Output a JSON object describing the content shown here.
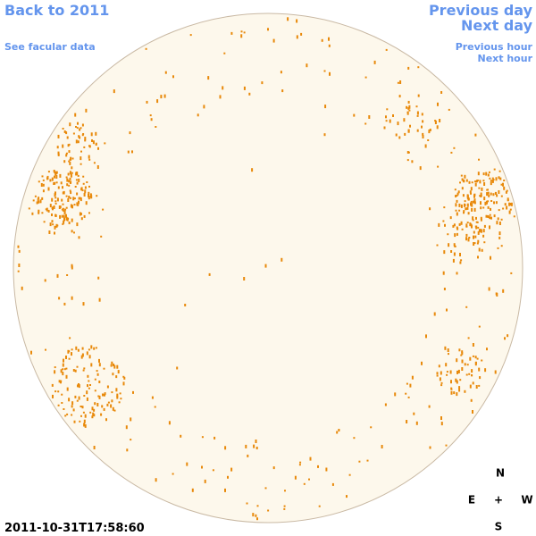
{
  "links": {
    "back": "Back to 2011",
    "facular": "See facular data",
    "previous_day": "Previous day",
    "next_day": "Next day",
    "previous_hour": "Previous hour",
    "next_hour": "Next hour"
  },
  "timestamp": "2011-10-31T17:58:60",
  "compass": {
    "north": "N",
    "east": "E",
    "center": "+",
    "west": "W",
    "south": "S"
  }
}
